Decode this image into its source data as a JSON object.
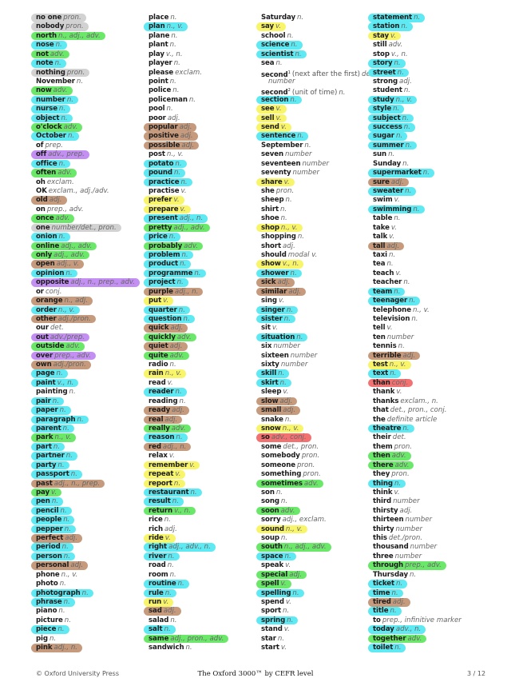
{
  "colors": {
    "c": "#5fe9f2",
    "gr": "#6be86a",
    "y": "#f8f56b",
    "b": "#c69a7c",
    "g": "#d2d2d2",
    "p": "#c48ff2",
    "r": "#f27272"
  },
  "columns": [
    [
      [
        "no one",
        "pron.",
        "g"
      ],
      [
        "nobody",
        "pron.",
        "g"
      ],
      [
        "north",
        "n., adj., adv.",
        "gr"
      ],
      [
        "nose",
        "n.",
        "c"
      ],
      [
        "not",
        "adv.",
        "gr"
      ],
      [
        "note",
        "n.",
        "c"
      ],
      [
        "nothing",
        "pron.",
        "g"
      ],
      [
        "November",
        "n.",
        ""
      ],
      [
        "now",
        "adv.",
        "gr"
      ],
      [
        "number",
        "n.",
        "c"
      ],
      [
        "nurse",
        "n.",
        "c"
      ],
      [
        "object",
        "n.",
        "c"
      ],
      [
        "o'clock",
        "adv.",
        "gr"
      ],
      [
        "October",
        "n.",
        "c"
      ],
      [
        "of",
        "prep.",
        ""
      ],
      [
        "off",
        "adv., prep.",
        "p"
      ],
      [
        "office",
        "n.",
        "c"
      ],
      [
        "often",
        "adv.",
        "gr"
      ],
      [
        "oh",
        "exclam.",
        ""
      ],
      [
        "OK",
        "exclam., adj./adv.",
        ""
      ],
      [
        "old",
        "adj.",
        "b"
      ],
      [
        "on",
        "prep., adv.",
        ""
      ],
      [
        "once",
        "adv.",
        "gr"
      ],
      [
        "one",
        "number/det., pron.",
        "g"
      ],
      [
        "onion",
        "n.",
        "c"
      ],
      [
        "online",
        "adj., adv.",
        "gr"
      ],
      [
        "only",
        "adj., adv.",
        "gr"
      ],
      [
        "open",
        "adj., v.",
        "b"
      ],
      [
        "opinion",
        "n.",
        "c"
      ],
      [
        "opposite",
        "adj., n., prep., adv.",
        "p"
      ],
      [
        "or",
        "conj.",
        ""
      ],
      [
        "orange",
        "n., adj.",
        "b"
      ],
      [
        "order",
        "n., v.",
        "c"
      ],
      [
        "other",
        "adj./pron.",
        "b"
      ],
      [
        "our",
        "det.",
        ""
      ],
      [
        "out",
        "adv./prep.",
        "p"
      ],
      [
        "outside",
        "adv.",
        "gr"
      ],
      [
        "over",
        "prep., adv.",
        "p"
      ],
      [
        "own",
        "adj./pron.",
        "b"
      ],
      [
        "page",
        "n.",
        "c"
      ],
      [
        "paint",
        "v., n.",
        "c"
      ],
      [
        "painting",
        "n.",
        ""
      ],
      [
        "pair",
        "n.",
        "c"
      ],
      [
        "paper",
        "n.",
        "c"
      ],
      [
        "paragraph",
        "n.",
        "c"
      ],
      [
        "parent",
        "n.",
        "c"
      ],
      [
        "park",
        "n., v.",
        "gr"
      ],
      [
        "part",
        "n.",
        "c"
      ],
      [
        "partner",
        "n.",
        "c"
      ],
      [
        "party",
        "n.",
        "c"
      ],
      [
        "passport",
        "n.",
        "c"
      ],
      [
        "past",
        "adj., n., prep.",
        "b"
      ],
      [
        "pay",
        "v.",
        "gr"
      ],
      [
        "pen",
        "n.",
        "c"
      ],
      [
        "pencil",
        "n.",
        "c"
      ],
      [
        "people",
        "n.",
        "c"
      ],
      [
        "pepper",
        "n.",
        "c"
      ],
      [
        "perfect",
        "adj.",
        "b"
      ],
      [
        "period",
        "n.",
        "c"
      ],
      [
        "person",
        "n.",
        "c"
      ],
      [
        "personal",
        "adj.",
        "b"
      ],
      [
        "phone",
        "n., v.",
        ""
      ],
      [
        "photo",
        "n.",
        ""
      ],
      [
        "photograph",
        "n.",
        "c"
      ],
      [
        "phrase",
        "n.",
        "c"
      ],
      [
        "piano",
        "n.",
        ""
      ],
      [
        "picture",
        "n.",
        ""
      ],
      [
        "piece",
        "n.",
        "c"
      ],
      [
        "pig",
        "n.",
        ""
      ],
      [
        "pink",
        "adj., n.",
        "b"
      ]
    ],
    [
      [
        "place",
        "n.",
        ""
      ],
      [
        "plan",
        "n., v.",
        "c"
      ],
      [
        "plane",
        "n.",
        ""
      ],
      [
        "plant",
        "n.",
        ""
      ],
      [
        "play",
        "v., n.",
        ""
      ],
      [
        "player",
        "n.",
        ""
      ],
      [
        "please",
        "exclam.",
        ""
      ],
      [
        "point",
        "n.",
        ""
      ],
      [
        "police",
        "n.",
        ""
      ],
      [
        "policeman",
        "n.",
        ""
      ],
      [
        "pool",
        "n.",
        ""
      ],
      [
        "poor",
        "adj.",
        ""
      ],
      [
        "popular",
        "adj.",
        "b"
      ],
      [
        "positive",
        "adj.",
        "b"
      ],
      [
        "possible",
        "adj.",
        "b"
      ],
      [
        "post",
        "n., v.",
        ""
      ],
      [
        "potato",
        "n.",
        "c"
      ],
      [
        "pound",
        "n.",
        "c"
      ],
      [
        "practice",
        "n.",
        "c"
      ],
      [
        "practise",
        "v.",
        ""
      ],
      [
        "prefer",
        "v.",
        "y"
      ],
      [
        "prepare",
        "v.",
        "y"
      ],
      [
        "present",
        "adj., n.",
        "c"
      ],
      [
        "pretty",
        "adj., adv.",
        "gr"
      ],
      [
        "price",
        "n.",
        "c"
      ],
      [
        "probably",
        "adv.",
        "gr"
      ],
      [
        "problem",
        "n.",
        "c"
      ],
      [
        "product",
        "n.",
        "c"
      ],
      [
        "programme",
        "n.",
        "c"
      ],
      [
        "project",
        "n.",
        "c"
      ],
      [
        "purple",
        "adj., n.",
        "b"
      ],
      [
        "put",
        "v.",
        "y"
      ],
      [
        "quarter",
        "n.",
        "c"
      ],
      [
        "question",
        "n.",
        "c"
      ],
      [
        "quick",
        "adj.",
        "b"
      ],
      [
        "quickly",
        "adv.",
        "gr"
      ],
      [
        "quiet",
        "adj.",
        "b"
      ],
      [
        "quite",
        "adv.",
        "gr"
      ],
      [
        "radio",
        "n.",
        ""
      ],
      [
        "rain",
        "n., v.",
        "y"
      ],
      [
        "read",
        "v.",
        ""
      ],
      [
        "reader",
        "n.",
        "c"
      ],
      [
        "reading",
        "n.",
        ""
      ],
      [
        "ready",
        "adj.",
        "b"
      ],
      [
        "real",
        "adj.",
        "b"
      ],
      [
        "really",
        "adv.",
        "gr"
      ],
      [
        "reason",
        "n.",
        "c"
      ],
      [
        "red",
        "adj., n.",
        "b"
      ],
      [
        "relax",
        "v.",
        ""
      ],
      [
        "remember",
        "v.",
        "y"
      ],
      [
        "repeat",
        "v.",
        "y"
      ],
      [
        "report",
        "n.",
        "y"
      ],
      [
        "restaurant",
        "n.",
        "c"
      ],
      [
        "result",
        "n.",
        "c"
      ],
      [
        "return",
        "v., n.",
        "gr"
      ],
      [
        "rice",
        "n.",
        ""
      ],
      [
        "rich",
        "adj.",
        ""
      ],
      [
        "ride",
        "v.",
        "y"
      ],
      [
        "right",
        "adj., adv., n.",
        "c"
      ],
      [
        "river",
        "n.",
        "c"
      ],
      [
        "road",
        "n.",
        ""
      ],
      [
        "room",
        "n.",
        ""
      ],
      [
        "routine",
        "n.",
        "c"
      ],
      [
        "rule",
        "n.",
        "c"
      ],
      [
        "run",
        "v.",
        "y"
      ],
      [
        "sad",
        "adj.",
        "b"
      ],
      [
        "salad",
        "n.",
        ""
      ],
      [
        "salt",
        "n.",
        "c"
      ],
      [
        "same",
        "adj., pron., adv.",
        "gr"
      ],
      [
        "sandwich",
        "n.",
        ""
      ]
    ],
    [
      [
        "Saturday",
        "n.",
        ""
      ],
      [
        "say",
        "v.",
        "y"
      ],
      [
        "school",
        "n.",
        ""
      ],
      [
        "science",
        "n.",
        "c"
      ],
      [
        "scientist",
        "n.",
        "c"
      ],
      [
        "sea",
        "n.",
        ""
      ],
      [
        "second",
        "det./",
        "",
        "(next after the first)",
        "1"
      ],
      [
        "",
        "number",
        "",
        "",
        ""
      ],
      [
        "second",
        "n.",
        "",
        "(unit of time)",
        "2"
      ],
      [
        "section",
        "n.",
        "c"
      ],
      [
        "see",
        "v.",
        "y"
      ],
      [
        "sell",
        "v.",
        "y"
      ],
      [
        "send",
        "v.",
        "y"
      ],
      [
        "sentence",
        "n.",
        "c"
      ],
      [
        "September",
        "n.",
        ""
      ],
      [
        "seven",
        "number",
        ""
      ],
      [
        "seventeen",
        "number",
        ""
      ],
      [
        "seventy",
        "number",
        ""
      ],
      [
        "share",
        "v.",
        "y"
      ],
      [
        "she",
        "pron.",
        ""
      ],
      [
        "sheep",
        "n.",
        ""
      ],
      [
        "shirt",
        "n.",
        ""
      ],
      [
        "shoe",
        "n.",
        ""
      ],
      [
        "shop",
        "n., v.",
        "y"
      ],
      [
        "shopping",
        "n.",
        ""
      ],
      [
        "short",
        "adj.",
        ""
      ],
      [
        "should",
        "modal v.",
        ""
      ],
      [
        "show",
        "v., n.",
        "y"
      ],
      [
        "shower",
        "n.",
        "c"
      ],
      [
        "sick",
        "adj.",
        "b"
      ],
      [
        "similar",
        "adj.",
        "b"
      ],
      [
        "sing",
        "v.",
        ""
      ],
      [
        "singer",
        "n.",
        "c"
      ],
      [
        "sister",
        "n.",
        "c"
      ],
      [
        "sit",
        "v.",
        ""
      ],
      [
        "situation",
        "n.",
        "c"
      ],
      [
        "six",
        "number",
        ""
      ],
      [
        "sixteen",
        "number",
        ""
      ],
      [
        "sixty",
        "number",
        ""
      ],
      [
        "skill",
        "n.",
        "c"
      ],
      [
        "skirt",
        "n.",
        "c"
      ],
      [
        "sleep",
        "v.",
        ""
      ],
      [
        "slow",
        "adj.",
        "b"
      ],
      [
        "small",
        "adj.",
        "b"
      ],
      [
        "snake",
        "n.",
        ""
      ],
      [
        "snow",
        "n., v.",
        "y"
      ],
      [
        "so",
        "adv., conj.",
        "r"
      ],
      [
        "some",
        "det., pron.",
        ""
      ],
      [
        "somebody",
        "pron.",
        ""
      ],
      [
        "someone",
        "pron.",
        ""
      ],
      [
        "something",
        "pron.",
        ""
      ],
      [
        "sometimes",
        "adv.",
        "gr"
      ],
      [
        "son",
        "n.",
        ""
      ],
      [
        "song",
        "n.",
        ""
      ],
      [
        "soon",
        "adv.",
        "gr"
      ],
      [
        "sorry",
        "adj., exclam.",
        ""
      ],
      [
        "sound",
        "n., v.",
        "y"
      ],
      [
        "soup",
        "n.",
        ""
      ],
      [
        "south",
        "n., adj., adv.",
        "gr"
      ],
      [
        "space",
        "n.",
        "c"
      ],
      [
        "speak",
        "v.",
        ""
      ],
      [
        "special",
        "adj.",
        "gr"
      ],
      [
        "spell",
        "v.",
        "gr"
      ],
      [
        "spelling",
        "n.",
        "c"
      ],
      [
        "spend",
        "v.",
        ""
      ],
      [
        "sport",
        "n.",
        ""
      ],
      [
        "spring",
        "n.",
        "c"
      ],
      [
        "stand",
        "v.",
        ""
      ],
      [
        "star",
        "n.",
        ""
      ],
      [
        "start",
        "v.",
        ""
      ]
    ],
    [
      [
        "statement",
        "n.",
        "c"
      ],
      [
        "station",
        "n.",
        "c"
      ],
      [
        "stay",
        "v.",
        "y"
      ],
      [
        "still",
        "adv.",
        ""
      ],
      [
        "stop",
        "v., n.",
        ""
      ],
      [
        "story",
        "n.",
        "c"
      ],
      [
        "street",
        "n.",
        "c"
      ],
      [
        "strong",
        "adj.",
        ""
      ],
      [
        "student",
        "n.",
        ""
      ],
      [
        "study",
        "n., v.",
        "c"
      ],
      [
        "style",
        "n.",
        "c"
      ],
      [
        "subject",
        "n.",
        "c"
      ],
      [
        "success",
        "n.",
        "c"
      ],
      [
        "sugar",
        "n.",
        "c"
      ],
      [
        "summer",
        "n.",
        "c"
      ],
      [
        "sun",
        "n.",
        ""
      ],
      [
        "Sunday",
        "n.",
        ""
      ],
      [
        "supermarket",
        "n.",
        "c"
      ],
      [
        "sure",
        "adj.",
        "b"
      ],
      [
        "sweater",
        "n.",
        "c"
      ],
      [
        "swim",
        "v.",
        ""
      ],
      [
        "swimming",
        "n.",
        "c"
      ],
      [
        "table",
        "n.",
        ""
      ],
      [
        "take",
        "v.",
        ""
      ],
      [
        "talk",
        "v.",
        ""
      ],
      [
        "tall",
        "adj.",
        "b"
      ],
      [
        "taxi",
        "n.",
        ""
      ],
      [
        "tea",
        "n.",
        ""
      ],
      [
        "teach",
        "v.",
        ""
      ],
      [
        "teacher",
        "n.",
        ""
      ],
      [
        "team",
        "n.",
        "c"
      ],
      [
        "teenager",
        "n.",
        "c"
      ],
      [
        "telephone",
        "n., v.",
        ""
      ],
      [
        "television",
        "n.",
        ""
      ],
      [
        "tell",
        "v.",
        ""
      ],
      [
        "ten",
        "number",
        ""
      ],
      [
        "tennis",
        "n.",
        ""
      ],
      [
        "terrible",
        "adj.",
        "b"
      ],
      [
        "test",
        "n., v.",
        "y"
      ],
      [
        "text",
        "n.",
        "c"
      ],
      [
        "than",
        "conj.",
        "r"
      ],
      [
        "thank",
        "v.",
        ""
      ],
      [
        "thanks",
        "exclam., n.",
        ""
      ],
      [
        "that",
        "det., pron., conj.",
        ""
      ],
      [
        "the",
        "definite article",
        ""
      ],
      [
        "theatre",
        "n.",
        "c"
      ],
      [
        "their",
        "det.",
        ""
      ],
      [
        "them",
        "pron.",
        ""
      ],
      [
        "then",
        "adv.",
        "gr"
      ],
      [
        "there",
        "adv.",
        "gr"
      ],
      [
        "they",
        "pron.",
        ""
      ],
      [
        "thing",
        "n.",
        "c"
      ],
      [
        "think",
        "v.",
        ""
      ],
      [
        "third",
        "number",
        ""
      ],
      [
        "thirsty",
        "adj.",
        ""
      ],
      [
        "thirteen",
        "number",
        ""
      ],
      [
        "thirty",
        "number",
        ""
      ],
      [
        "this",
        "det./pron.",
        ""
      ],
      [
        "thousand",
        "number",
        ""
      ],
      [
        "three",
        "number",
        ""
      ],
      [
        "through",
        "prep., adv.",
        "gr"
      ],
      [
        "Thursday",
        "n.",
        ""
      ],
      [
        "ticket",
        "n.",
        "c"
      ],
      [
        "time",
        "n.",
        "c"
      ],
      [
        "tired",
        "adj.",
        "b"
      ],
      [
        "title",
        "n.",
        "c"
      ],
      [
        "to",
        "prep., infinitive marker",
        ""
      ],
      [
        "today",
        "adv., n.",
        "c"
      ],
      [
        "together",
        "adv.",
        "gr"
      ],
      [
        "toilet",
        "n.",
        "c"
      ]
    ]
  ],
  "footer": {
    "publisher": "© Oxford University Press",
    "title": "The Oxford 3000™ by CEFR level",
    "page": "3 / 12"
  }
}
